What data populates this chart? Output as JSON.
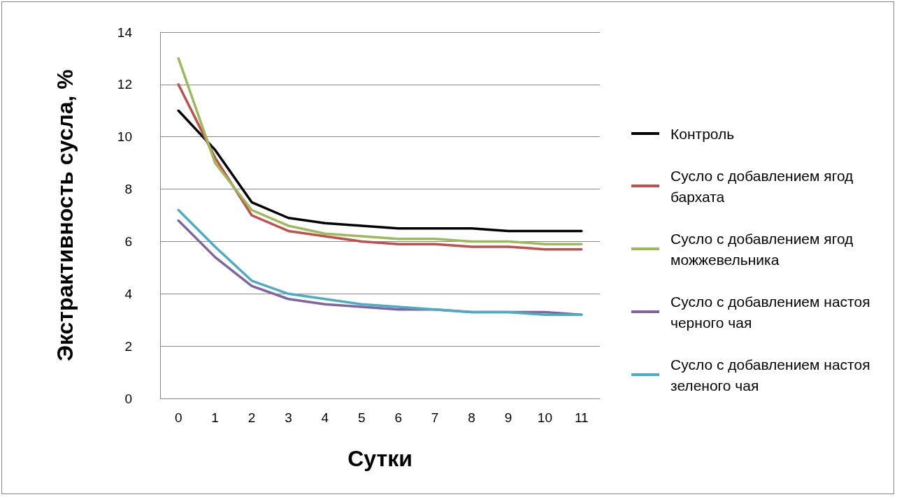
{
  "chart_data": {
    "type": "line",
    "xlabel": "Сутки",
    "ylabel": "Экстрактивность сусла, %",
    "categories": [
      "0",
      "1",
      "2",
      "3",
      "4",
      "5",
      "6",
      "7",
      "8",
      "9",
      "10",
      "11"
    ],
    "ylim": [
      0,
      14
    ],
    "yticks": [
      0,
      2,
      4,
      6,
      8,
      10,
      12,
      14
    ],
    "grid": "y",
    "legend": "right",
    "marker": "none",
    "line_style": "solid",
    "series": [
      {
        "name": "Контроль",
        "color": "#000000",
        "values": [
          11,
          9.5,
          7.5,
          6.9,
          6.7,
          6.6,
          6.5,
          6.5,
          6.5,
          6.4,
          6.4,
          6.4
        ]
      },
      {
        "name": "Сусло с добавлением ягод бархата",
        "color": "#c0504d",
        "values": [
          12,
          9.2,
          7.0,
          6.4,
          6.2,
          6.0,
          5.9,
          5.9,
          5.8,
          5.8,
          5.7,
          5.7
        ]
      },
      {
        "name": "Сусло с добавлением ягод можжевельника",
        "color": "#9bbb59",
        "values": [
          13,
          9.0,
          7.2,
          6.6,
          6.3,
          6.2,
          6.1,
          6.1,
          6.0,
          6.0,
          5.9,
          5.9
        ]
      },
      {
        "name": "Сусло с добавлением настоя черного чая",
        "color": "#8064a2",
        "values": [
          6.8,
          5.4,
          4.3,
          3.8,
          3.6,
          3.5,
          3.4,
          3.4,
          3.3,
          3.3,
          3.3,
          3.2
        ]
      },
      {
        "name": "Сусло с добавлением настоя зеленого чая",
        "color": "#4bacc6",
        "values": [
          7.2,
          5.8,
          4.5,
          4.0,
          3.8,
          3.6,
          3.5,
          3.4,
          3.3,
          3.3,
          3.2,
          3.2
        ]
      }
    ]
  }
}
